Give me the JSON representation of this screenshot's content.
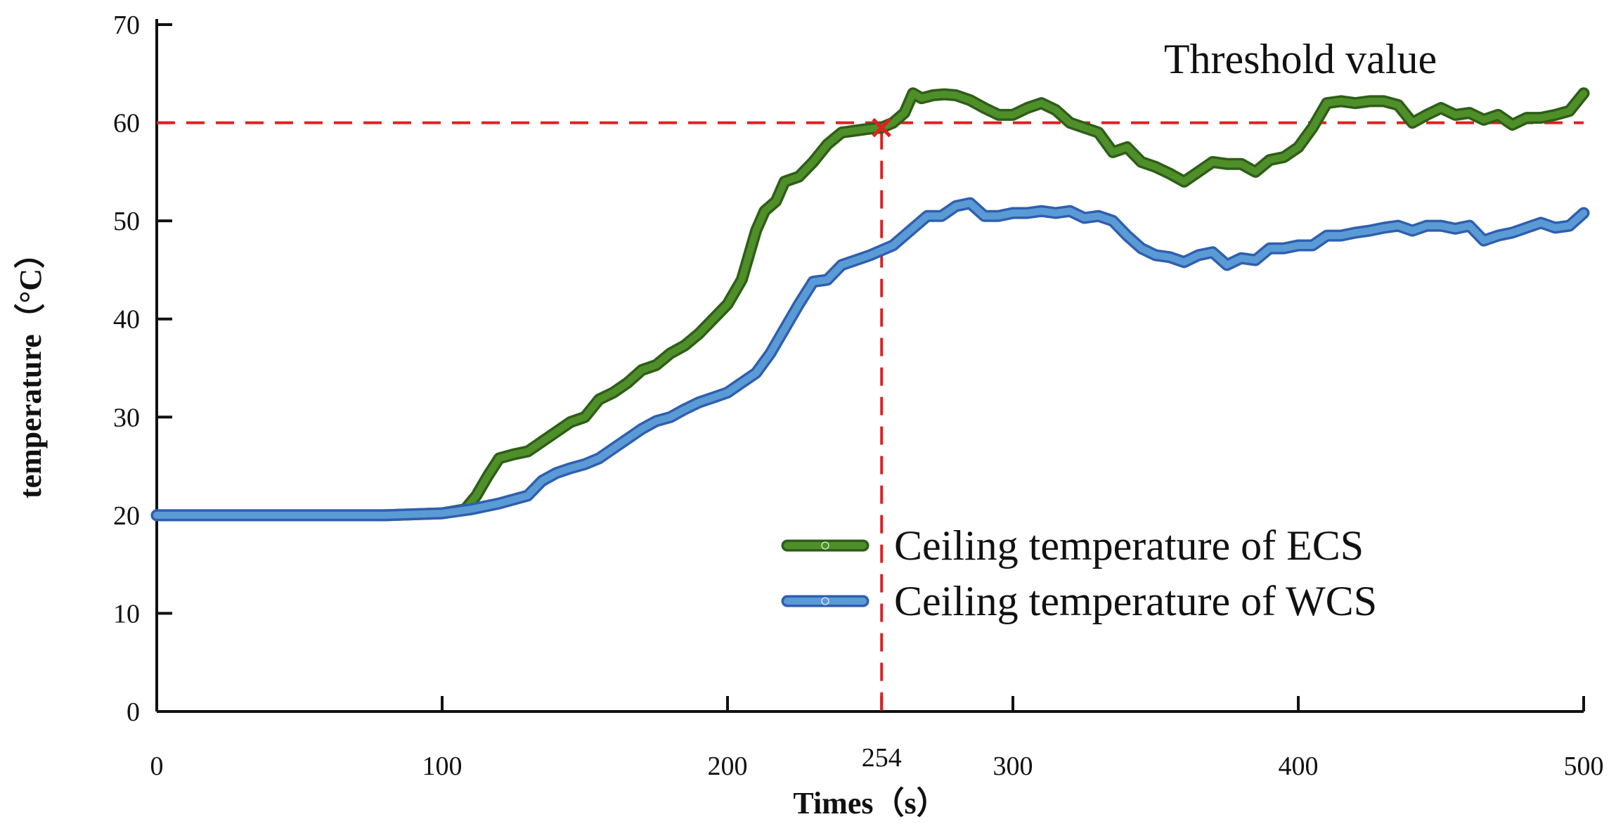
{
  "chart_data": {
    "type": "line",
    "title": "",
    "xlabel": "Times（s）",
    "ylabel": "temperature（°C）",
    "xlim": [
      0,
      500
    ],
    "ylim": [
      0,
      70
    ],
    "x_ticks": [
      0,
      100,
      200,
      254,
      300,
      400,
      500
    ],
    "x_tick_labels": [
      "0",
      "100",
      "200",
      "254",
      "300",
      "400",
      "500"
    ],
    "y_ticks": [
      0,
      10,
      20,
      30,
      40,
      50,
      60,
      70
    ],
    "y_tick_labels": [
      "0",
      "10",
      "20",
      "30",
      "40",
      "50",
      "60",
      "70"
    ],
    "grid": false,
    "legend_position": "bottom-right",
    "annotations": [
      {
        "text": "Threshold value",
        "type": "horizontal-reference-line",
        "y": 60,
        "color": "#e02020"
      },
      {
        "text": "",
        "type": "vertical-reference-line",
        "x": 254,
        "color": "#e02020"
      },
      {
        "text": "",
        "type": "cross-marker",
        "x": 254,
        "y": 59.5,
        "color": "#e02020"
      }
    ],
    "series": [
      {
        "name": "Ceiling temperature of ECS",
        "color": "#4f8f2a",
        "edge_color": "#2e5e17",
        "x": [
          0,
          20,
          40,
          60,
          80,
          100,
          108,
          112,
          116,
          120,
          125,
          130,
          135,
          140,
          145,
          150,
          155,
          160,
          165,
          170,
          175,
          180,
          185,
          190,
          195,
          200,
          205,
          210,
          213,
          217,
          220,
          225,
          230,
          235,
          240,
          245,
          250,
          254,
          258,
          262,
          265,
          268,
          272,
          276,
          280,
          285,
          290,
          295,
          300,
          305,
          310,
          315,
          320,
          325,
          330,
          335,
          340,
          345,
          350,
          355,
          360,
          365,
          370,
          375,
          380,
          385,
          390,
          395,
          400,
          405,
          410,
          415,
          420,
          425,
          430,
          435,
          440,
          445,
          450,
          455,
          460,
          465,
          470,
          475,
          480,
          485,
          490,
          495,
          500
        ],
        "values": [
          20,
          20,
          20,
          20,
          20,
          20.2,
          20.6,
          22,
          24,
          25.8,
          26.2,
          26.5,
          27.5,
          28.5,
          29.5,
          30,
          31.8,
          32.5,
          33.5,
          34.8,
          35.3,
          36.5,
          37.3,
          38.5,
          40,
          41.5,
          44,
          49,
          51,
          52,
          54,
          54.5,
          56,
          57.8,
          59,
          59.2,
          59.4,
          59.5,
          60,
          61,
          63,
          62.5,
          62.8,
          62.9,
          62.8,
          62.3,
          61.5,
          60.8,
          60.8,
          61.5,
          62,
          61.3,
          60,
          59.5,
          59,
          57,
          57.5,
          56,
          55.5,
          54.8,
          54,
          55,
          56,
          55.8,
          55.8,
          55,
          56.2,
          56.5,
          57.5,
          59.5,
          62,
          62.2,
          62,
          62.2,
          62.2,
          61.8,
          60,
          60.8,
          61.5,
          60.8,
          61,
          60.3,
          60.8,
          59.8,
          60.5,
          60.5,
          60.8,
          61.2,
          63
        ]
      },
      {
        "name": "Ceiling temperature of WCS",
        "color": "#5b9bd5",
        "edge_color": "#2f5fb0",
        "x": [
          0,
          20,
          40,
          60,
          80,
          100,
          110,
          120,
          130,
          135,
          140,
          145,
          150,
          155,
          160,
          165,
          170,
          175,
          180,
          185,
          190,
          195,
          200,
          205,
          210,
          215,
          220,
          225,
          230,
          235,
          240,
          245,
          250,
          254,
          258,
          262,
          266,
          270,
          275,
          280,
          285,
          290,
          295,
          300,
          305,
          310,
          315,
          320,
          325,
          330,
          335,
          340,
          345,
          350,
          355,
          360,
          365,
          370,
          375,
          380,
          385,
          390,
          395,
          400,
          405,
          410,
          415,
          420,
          425,
          430,
          435,
          440,
          445,
          450,
          455,
          460,
          465,
          470,
          475,
          480,
          485,
          490,
          495,
          500
        ],
        "values": [
          20,
          20,
          20,
          20,
          20,
          20.2,
          20.6,
          21.2,
          22,
          23.5,
          24.3,
          24.8,
          25.2,
          25.8,
          26.8,
          27.8,
          28.8,
          29.6,
          30,
          30.8,
          31.5,
          32,
          32.5,
          33.5,
          34.5,
          36.5,
          39,
          41.5,
          43.8,
          44,
          45.5,
          46,
          46.5,
          47,
          47.5,
          48.5,
          49.5,
          50.5,
          50.5,
          51.5,
          51.8,
          50.5,
          50.5,
          50.8,
          50.8,
          51,
          50.8,
          51,
          50.3,
          50.5,
          50,
          48.5,
          47.2,
          46.5,
          46.3,
          45.8,
          46.5,
          46.8,
          45.5,
          46.2,
          46,
          47.2,
          47.2,
          47.5,
          47.5,
          48.5,
          48.5,
          48.8,
          49,
          49.3,
          49.5,
          49,
          49.5,
          49.5,
          49.2,
          49.5,
          48,
          48.5,
          48.8,
          49.3,
          49.8,
          49.3,
          49.5,
          50.8
        ]
      }
    ]
  }
}
